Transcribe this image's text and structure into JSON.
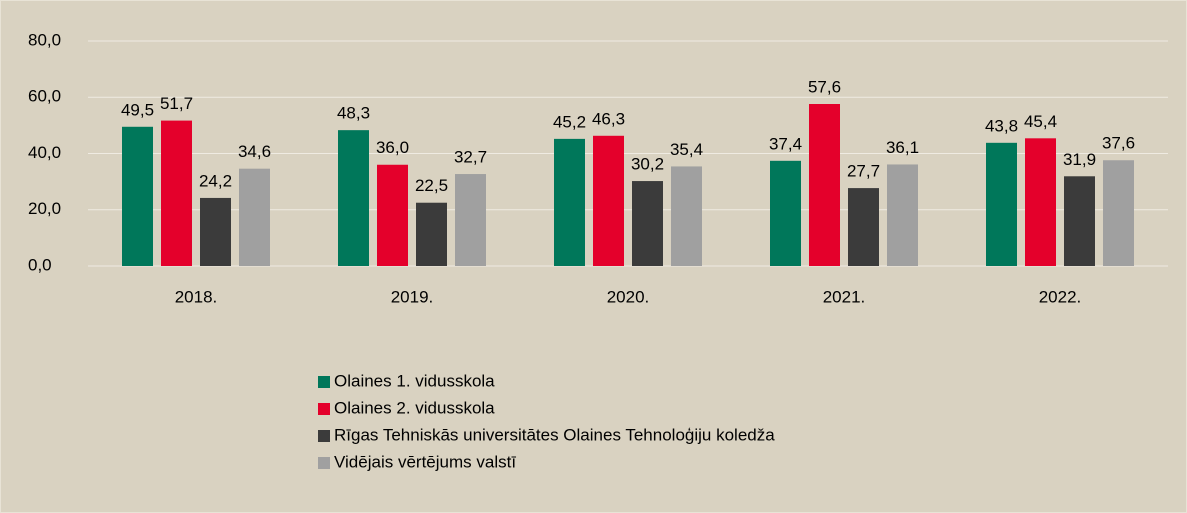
{
  "chart_data": {
    "type": "bar",
    "categories": [
      "2018.",
      "2019.",
      "2020.",
      "2021.",
      "2022."
    ],
    "series": [
      {
        "name": "Olaines 1. vidusskola",
        "color": "#00775a",
        "values": [
          49.5,
          48.3,
          45.2,
          37.4,
          43.8
        ],
        "value_labels": [
          "49,5",
          "48,3",
          "45,2",
          "37,4",
          "43,8"
        ]
      },
      {
        "name": "Olaines 2. vidusskola",
        "color": "#e4002b",
        "values": [
          51.7,
          36.0,
          46.3,
          57.6,
          45.4
        ],
        "value_labels": [
          "51,7",
          "36,0",
          "46,3",
          "57,6",
          "45,4"
        ]
      },
      {
        "name": "Rīgas Tehniskās universitātes Olaines Tehnoloģiju koledža",
        "color": "#3b3b3b",
        "values": [
          24.2,
          22.5,
          30.2,
          27.7,
          31.9
        ],
        "value_labels": [
          "24,2",
          "22,5",
          "30,2",
          "27,7",
          "31,9"
        ]
      },
      {
        "name": "Vidējais vērtējums valstī",
        "color": "#a0a0a0",
        "values": [
          34.6,
          32.7,
          35.4,
          36.1,
          37.6
        ],
        "value_labels": [
          "34,6",
          "32,7",
          "35,4",
          "36,1",
          "37,6"
        ]
      }
    ],
    "ylim": [
      0,
      80
    ],
    "yticks": [
      {
        "value": 0,
        "label": "0,0"
      },
      {
        "value": 20,
        "label": "20,0"
      },
      {
        "value": 40,
        "label": "40,0"
      },
      {
        "value": 60,
        "label": "60,0"
      },
      {
        "value": 80,
        "label": "80,0"
      }
    ],
    "grid": true,
    "legend": "bottom"
  }
}
